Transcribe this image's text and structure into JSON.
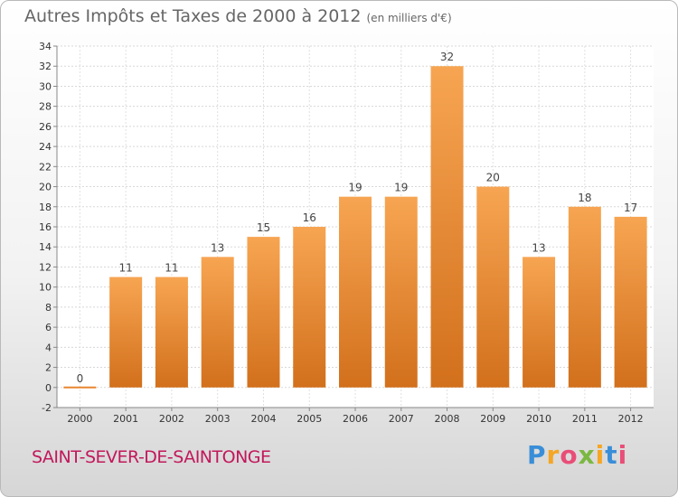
{
  "chart_data": {
    "type": "bar",
    "title": "Autres Impôts et Taxes de 2000 à 2012",
    "subtitle": "(en milliers d'€)",
    "categories": [
      "2000",
      "2001",
      "2002",
      "2003",
      "2004",
      "2005",
      "2006",
      "2007",
      "2008",
      "2009",
      "2010",
      "2011",
      "2012"
    ],
    "values": [
      0,
      11,
      11,
      13,
      15,
      16,
      19,
      19,
      32,
      20,
      13,
      18,
      17
    ],
    "ylim": [
      -2,
      34
    ],
    "yticks": [
      -2,
      0,
      2,
      4,
      6,
      8,
      10,
      12,
      14,
      16,
      18,
      20,
      22,
      24,
      26,
      28,
      30,
      32,
      34
    ],
    "grid": true,
    "bar_color": "#f0913a"
  },
  "commune": "SAINT-SEVER-DE-SAINTONGE",
  "logo": {
    "text": "Proxiti",
    "letters": [
      "P",
      "r",
      "o",
      "x",
      "i",
      "t",
      "i"
    ]
  }
}
